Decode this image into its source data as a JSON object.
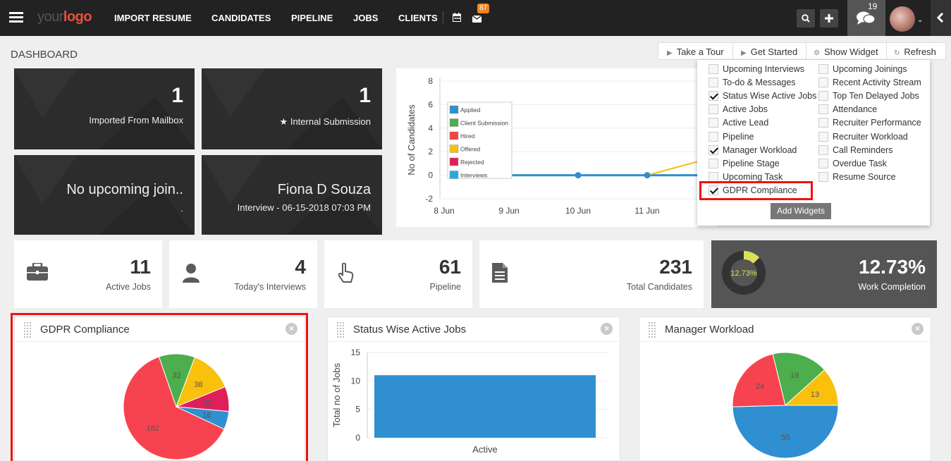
{
  "nav": {
    "logo_a": "your",
    "logo_b": "logo",
    "items": [
      "IMPORT RESUME",
      "CANDIDATES",
      "PIPELINE",
      "JOBS",
      "CLIENTS"
    ],
    "mail_badge": "87",
    "chat_badge": "19"
  },
  "page": {
    "title": "DASHBOARD"
  },
  "toolbar": {
    "tour": "Take a Tour",
    "started": "Get Started",
    "widget": "Show Widget",
    "refresh": "Refresh"
  },
  "tiles": [
    {
      "num": "1",
      "label": "Imported From Mailbox"
    },
    {
      "num": "1",
      "label": "Internal Submission"
    },
    {
      "text": "No upcoming join..",
      "sub": "."
    },
    {
      "text": "Fiona D Souza",
      "sub": "Interview - 06-15-2018 07:03 PM"
    }
  ],
  "dropdown": {
    "left": [
      {
        "label": "Upcoming Interviews",
        "checked": false
      },
      {
        "label": "To-do & Messages",
        "checked": false
      },
      {
        "label": "Status Wise Active Jobs",
        "checked": true
      },
      {
        "label": "Active Jobs",
        "checked": false
      },
      {
        "label": "Active Lead",
        "checked": false
      },
      {
        "label": "Pipeline",
        "checked": false
      },
      {
        "label": "Manager Workload",
        "checked": true
      },
      {
        "label": "Pipeline Stage",
        "checked": false
      },
      {
        "label": "Upcoming Task",
        "checked": false
      },
      {
        "label": "GDPR Compliance",
        "checked": true
      }
    ],
    "right": [
      {
        "label": "Upcoming Joinings",
        "checked": false
      },
      {
        "label": "Recent Activity Stream",
        "checked": false
      },
      {
        "label": "Top Ten Delayed Jobs",
        "checked": false
      },
      {
        "label": "Attendance",
        "checked": false
      },
      {
        "label": "Recruiter Performance",
        "checked": false
      },
      {
        "label": "Recruiter Workload",
        "checked": false
      },
      {
        "label": "Call Reminders",
        "checked": false
      },
      {
        "label": "Overdue Task",
        "checked": false
      },
      {
        "label": "Resume Source",
        "checked": false
      }
    ],
    "add_label": "Add Widgets"
  },
  "stats": [
    {
      "num": "11",
      "label": "Active Jobs"
    },
    {
      "num": "4",
      "label": "Today's Interviews"
    },
    {
      "num": "61",
      "label": "Pipeline"
    },
    {
      "num": "231",
      "label": "Total Candidates"
    }
  ],
  "completion": {
    "value": "12.73%",
    "ring_label": "12.73%",
    "label": "Work Completion",
    "fraction": 0.1273
  },
  "widgets": {
    "gdpr": "GDPR Compliance",
    "status": "Status Wise Active Jobs",
    "manager": "Manager Workload"
  },
  "chart_data": [
    {
      "type": "line",
      "ylabel": "No of Candidates",
      "x": [
        "8 Jun",
        "9 Jun",
        "10 Jun",
        "11 Jun"
      ],
      "yticks": [
        -2,
        0,
        2,
        4,
        6,
        8
      ],
      "ylim": [
        -2,
        8
      ],
      "legend": [
        "Applied",
        "Client Submission",
        "Hired",
        "Offered",
        "Rejected",
        "Interviews"
      ],
      "legend_colors": [
        "#2f8fd0",
        "#4cae4c",
        "#f04545",
        "#f5c012",
        "#e01e5a",
        "#29a8e0"
      ],
      "series": [
        {
          "name": "Applied",
          "values": [
            0,
            0,
            0,
            0
          ]
        }
      ]
    },
    {
      "type": "pie",
      "title": "GDPR Compliance",
      "values": [
        182,
        32,
        38,
        22,
        16
      ],
      "colors": [
        "#f7434f",
        "#4cae4c",
        "#f9c00c",
        "#e01e5a",
        "#2f8fd0"
      ]
    },
    {
      "type": "bar",
      "title": "Status Wise Active Jobs",
      "categories": [
        "Active"
      ],
      "values": [
        11
      ],
      "ylabel": "Total no of Jobs",
      "yticks": [
        0,
        5,
        10,
        15
      ],
      "ylim": [
        0,
        15
      ],
      "color": "#2f8fd0"
    },
    {
      "type": "pie",
      "title": "Manager Workload",
      "values": [
        55,
        24,
        19,
        13
      ],
      "colors": [
        "#2f8fd0",
        "#f7434f",
        "#4cae4c",
        "#f9c00c"
      ]
    }
  ]
}
